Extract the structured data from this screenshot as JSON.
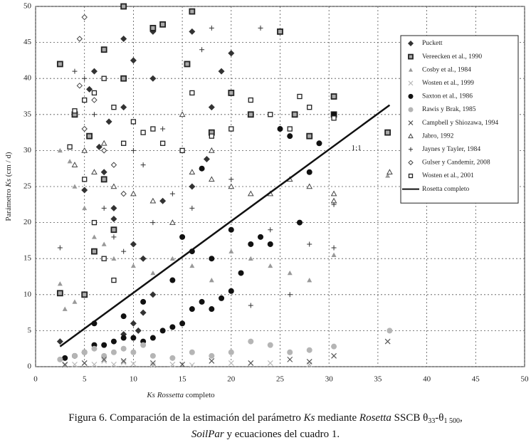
{
  "chart_data": {
    "type": "scatter",
    "xlabel": [
      "Ks Rossetta",
      " completo"
    ],
    "ylabel": [
      "Parámetro ",
      "Ks",
      " (cm / d)"
    ],
    "annotation": "1:1",
    "annotation_xy": [
      32.8,
      30.3
    ],
    "xlim": [
      0,
      50
    ],
    "ylim": [
      0,
      50
    ],
    "xticks": [
      0,
      5,
      10,
      15,
      20,
      25,
      30,
      35,
      40,
      45,
      50
    ],
    "yticks": [
      0,
      5,
      10,
      15,
      20,
      25,
      30,
      35,
      40,
      45,
      50
    ],
    "grid": true,
    "legend": "upper right",
    "series": [
      {
        "name": "Puckett",
        "marker": "diamond",
        "color": "#333333",
        "x": [
          2.5,
          5,
          5.5,
          6,
          6.5,
          7,
          7.5,
          8,
          9,
          9,
          10,
          12,
          12,
          16,
          16,
          18,
          19,
          20,
          17.5,
          8,
          10.5,
          11,
          13,
          10,
          9,
          12,
          10,
          11
        ],
        "y": [
          3.5,
          24.5,
          38.5,
          41,
          30.5,
          27,
          34,
          22,
          45.5,
          36,
          42.5,
          46.5,
          40,
          46.5,
          25,
          36,
          41,
          43.5,
          28.8,
          20.5,
          5,
          15,
          23,
          17,
          4.5,
          10,
          6,
          7.5
        ]
      },
      {
        "name": "Vereecken et al., 1990",
        "marker": "filled-square",
        "color": "#222222",
        "x": [
          2.5,
          2.5,
          4,
          5.5,
          7,
          9,
          9,
          12,
          13,
          15.5,
          16,
          18,
          20,
          22,
          25,
          26.5,
          28,
          30.5,
          30.5,
          36,
          7,
          8,
          6,
          5
        ],
        "y": [
          42,
          10.2,
          35,
          32,
          44,
          50,
          40,
          47,
          47.5,
          42,
          49.3,
          32.5,
          38,
          35,
          46.5,
          35,
          32,
          35,
          37.5,
          32.5,
          26,
          19,
          16,
          10
        ]
      },
      {
        "name": "Cosby et al., 1984",
        "marker": "filled-triangle",
        "color": "#999999",
        "x": [
          2.5,
          3.5,
          4,
          5,
          6,
          7,
          8,
          10,
          12,
          14,
          16,
          18,
          20,
          22,
          24,
          26,
          28,
          30.5,
          36,
          2.5,
          3,
          4
        ],
        "y": [
          30,
          28.5,
          25,
          22,
          18,
          17,
          15,
          14,
          13,
          15,
          14,
          12,
          16,
          15,
          14,
          13,
          12,
          15.5,
          26.5,
          11.5,
          8,
          9
        ]
      },
      {
        "name": "Wosten et al., 1999",
        "marker": "x",
        "color": "#bbbbbb",
        "x": [
          3,
          4,
          5,
          6,
          7,
          8,
          9,
          10,
          12,
          14,
          16,
          20,
          24,
          28
        ],
        "y": [
          0.2,
          0.3,
          0.5,
          0.3,
          0.8,
          0.3,
          0.6,
          0.4,
          0.2,
          0.3,
          0.2,
          0.5,
          0.5,
          0.3
        ]
      },
      {
        "name": "Saxton et al., 1986",
        "marker": "circle",
        "color": "#111111",
        "x": [
          3,
          4,
          5,
          6,
          7,
          8,
          9,
          10,
          11,
          12,
          13,
          14,
          15,
          16,
          17,
          18,
          19,
          20,
          21,
          22,
          23,
          24,
          25,
          26,
          27,
          28,
          29,
          30.5,
          15,
          16,
          17,
          20,
          14,
          18,
          9,
          11,
          6
        ],
        "y": [
          1.2,
          1.5,
          2,
          3,
          3,
          3.5,
          4,
          4,
          3.5,
          4,
          5,
          5.5,
          6,
          8,
          9,
          8,
          9.5,
          10.5,
          13,
          17,
          18,
          17,
          33,
          32,
          20,
          27,
          31,
          35,
          18,
          16,
          27.5,
          19,
          12,
          15,
          7,
          9,
          6
        ]
      },
      {
        "name": "Rawis y Brak, 1985",
        "marker": "circle",
        "color": "#b5b5b5",
        "x": [
          2.5,
          4,
          5,
          6,
          7,
          8,
          9,
          10,
          11,
          12,
          14,
          16,
          18,
          20,
          22,
          24,
          26,
          28,
          30.5,
          36.2
        ],
        "y": [
          1,
          1.5,
          2,
          2.5,
          1.5,
          2,
          2.5,
          2,
          3,
          1.5,
          1.2,
          2,
          1.5,
          2,
          3.5,
          3,
          2,
          2.3,
          2.8,
          5
        ]
      },
      {
        "name": "Campbell y Shiozawa, 1994",
        "marker": "x",
        "color": "#555555",
        "x": [
          3,
          5,
          7,
          9,
          12,
          15,
          18,
          22,
          26,
          28,
          30.5,
          36
        ],
        "y": [
          0.3,
          0.5,
          1,
          0.8,
          0.5,
          0.3,
          0.8,
          0.5,
          1,
          0.7,
          1.5,
          3.5
        ]
      },
      {
        "name": "Jabro, 1992",
        "marker": "open-triangle",
        "color": "#444444",
        "x": [
          4,
          5,
          6,
          7,
          8,
          10,
          12,
          14,
          16,
          18,
          20,
          22,
          24,
          26,
          28,
          30.5,
          30.5,
          36.2,
          15,
          18
        ],
        "y": [
          28,
          30,
          27,
          31,
          25,
          24,
          23,
          20,
          27,
          26,
          25,
          24,
          24,
          26,
          25,
          24,
          23,
          27,
          35,
          30
        ]
      },
      {
        "name": "Jaynes y Tayler, 1984",
        "marker": "plus",
        "color": "#333333",
        "x": [
          2.5,
          4,
          5,
          6,
          7,
          8,
          9,
          10,
          11,
          12,
          13,
          14,
          15,
          16,
          17,
          18,
          20,
          22,
          23,
          24,
          26,
          28,
          30.5,
          30.5
        ],
        "y": [
          16.5,
          41,
          40,
          35,
          22,
          18,
          16,
          30,
          28,
          20,
          33,
          24,
          30,
          22,
          44,
          47,
          26,
          8.5,
          47,
          19,
          10,
          17,
          16.5,
          22.5
        ]
      },
      {
        "name": "Gulser y Candemir, 2008",
        "marker": "open-diamond",
        "color": "#444444",
        "x": [
          5,
          4.5,
          4.5,
          6,
          5,
          7,
          8,
          9
        ],
        "y": [
          48.5,
          45.5,
          39,
          37,
          33,
          30,
          28,
          24
        ]
      },
      {
        "name": "Wosten et al., 2001",
        "marker": "open-square",
        "color": "#222222",
        "x": [
          3.5,
          4,
          5,
          6,
          7,
          8,
          9,
          10,
          11,
          12,
          13,
          15,
          16,
          18,
          20,
          22,
          24,
          26,
          27,
          28,
          30.5,
          5,
          6,
          7,
          8
        ],
        "y": [
          30.5,
          35.5,
          37,
          38,
          40,
          36,
          31,
          34,
          32.5,
          33,
          31,
          30,
          38,
          32,
          33,
          37,
          35,
          33,
          37.5,
          36,
          34.5,
          26,
          20,
          15,
          12
        ]
      },
      {
        "name": "Rosetta completo",
        "marker": "line",
        "color": "#111111",
        "x": [
          2.5,
          36.2
        ],
        "y": [
          2.8,
          36.3
        ]
      }
    ],
    "caption": {
      "line1": [
        "Figura 6. Comparación de la estimación del parámetro ",
        "Ks",
        " mediante ",
        "Rosetta",
        " SSCB θ",
        "33",
        "-θ",
        "1 500",
        ","
      ],
      "line2": [
        "SoilPar",
        " y ecuaciones del cuadro 1."
      ]
    }
  }
}
